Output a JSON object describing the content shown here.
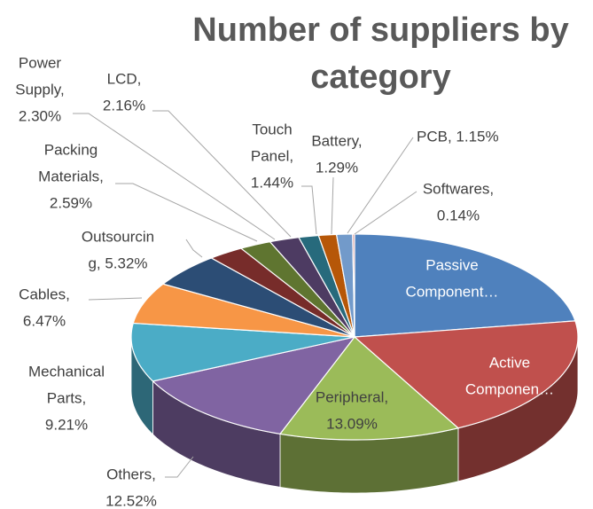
{
  "chart_data": {
    "type": "pie3d",
    "title": "Number of suppliers by category",
    "values": [
      22.5,
      19.82,
      13.09,
      12.52,
      9.21,
      6.47,
      5.32,
      2.59,
      2.3,
      2.16,
      1.44,
      1.29,
      1.15,
      0.14
    ],
    "value_labels": [
      [
        "Passive",
        "Component…"
      ],
      [
        "Active",
        "Componen…"
      ],
      [
        "Peripheral,",
        "13.09%"
      ],
      [
        "Others,",
        "12.52%"
      ],
      [
        "Mechanical",
        "Parts,",
        "9.21%"
      ],
      [
        "Cables,",
        "6.47%"
      ],
      [
        "Outsourcin",
        "g, 5.32%"
      ],
      [
        "Packing",
        "Materials,",
        "2.59%"
      ],
      [
        "Power",
        "Supply,",
        "2.30%"
      ],
      [
        "LCD,",
        "2.16%"
      ],
      [
        "Touch",
        "Panel,",
        "1.44%"
      ],
      [
        "Battery,",
        "1.29%"
      ],
      [
        "PCB, 1.15%"
      ],
      [
        "Softwares,",
        "0.14%"
      ]
    ],
    "colors": [
      "#4f81bd",
      "#c0504d",
      "#9bbb59",
      "#8064a2",
      "#4bacc6",
      "#f79646",
      "#2c4d75",
      "#772c2a",
      "#5f7530",
      "#4d3b62",
      "#276a7c",
      "#b65708",
      "#729aca",
      "#d38988"
    ]
  }
}
